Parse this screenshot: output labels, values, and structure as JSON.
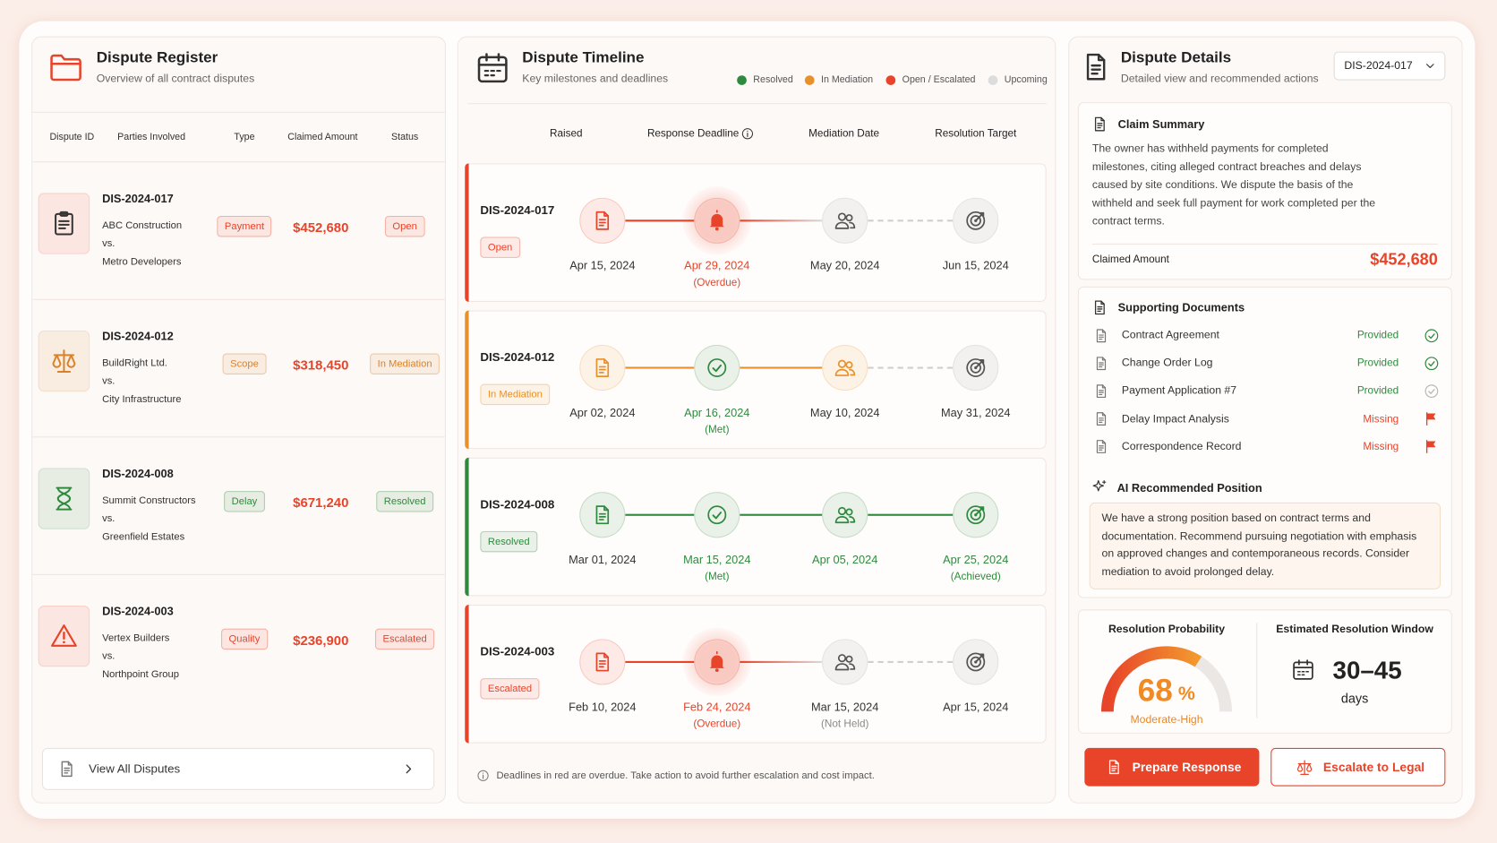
{
  "register": {
    "title": "Dispute Register",
    "subtitle": "Overview of all contract disputes",
    "columns": [
      "Dispute ID",
      "Parties Involved",
      "Type",
      "Claimed Amount",
      "Status"
    ],
    "rows": [
      {
        "id": "DIS-2024-017",
        "parties": [
          "ABC Construction",
          "vs.",
          "Metro Developers"
        ],
        "type": "Payment",
        "amount": "$452,680",
        "status": "Open",
        "color": "#e8442a"
      },
      {
        "id": "DIS-2024-012",
        "parties": [
          "BuildRight Ltd.",
          "vs.",
          "City Infrastructure"
        ],
        "type": "Scope",
        "amount": "$318,450",
        "status": "In Mediation",
        "color": "#d9822b"
      },
      {
        "id": "DIS-2024-008",
        "parties": [
          "Summit Constructors",
          "vs.",
          "Greenfield Estates"
        ],
        "type": "Delay",
        "amount": "$671,240",
        "status": "Resolved",
        "color": "#2f8a3e"
      },
      {
        "id": "DIS-2024-003",
        "parties": [
          "Vertex Builders",
          "vs.",
          "Northpoint Group"
        ],
        "type": "Quality",
        "amount": "$236,900",
        "status": "Escalated",
        "color": "#e8442a"
      }
    ],
    "view_all": "View All Disputes"
  },
  "timeline": {
    "title": "Dispute Timeline",
    "subtitle": "Key milestones and deadlines",
    "legend": [
      {
        "label": "Resolved",
        "color": "#2f8a3e"
      },
      {
        "label": "In Mediation",
        "color": "#e8912a"
      },
      {
        "label": "Open / Escalated",
        "color": "#e8442a"
      },
      {
        "label": "Upcoming",
        "color": "#dcdcdc"
      }
    ],
    "columns": [
      "Raised",
      "Response Deadline",
      "Mediation Date",
      "Resolution Target"
    ],
    "rows": [
      {
        "id": "DIS-2024-017",
        "status": "Open",
        "color": "#e8442a",
        "milestones": [
          {
            "date": "Apr 15, 2024",
            "color": "#e8442a"
          },
          {
            "date": "Apr 29, 2024",
            "note": "(Overdue)",
            "color": "#e8442a"
          },
          {
            "date": "May 20, 2024",
            "color": "#8a8a8a"
          },
          {
            "date": "Jun 15, 2024",
            "color": "#8a8a8a"
          }
        ]
      },
      {
        "id": "DIS-2024-012",
        "status": "In Mediation",
        "color": "#e8912a",
        "milestones": [
          {
            "date": "Apr 02, 2024",
            "color": "#e8912a"
          },
          {
            "date": "Apr 16, 2024",
            "note": "(Met)",
            "color": "#2f8a3e"
          },
          {
            "date": "May 10, 2024",
            "color": "#e8912a"
          },
          {
            "date": "May 31, 2024",
            "color": "#8a8a8a"
          }
        ]
      },
      {
        "id": "DIS-2024-008",
        "status": "Resolved",
        "color": "#2f8a3e",
        "milestones": [
          {
            "date": "Mar 01, 2024",
            "color": "#2f8a3e"
          },
          {
            "date": "Mar 15, 2024",
            "note": "(Met)",
            "color": "#2f8a3e"
          },
          {
            "date": "Apr 05, 2024",
            "color": "#2f8a3e"
          },
          {
            "date": "Apr 25, 2024",
            "note": "(Achieved)",
            "color": "#2f8a3e"
          }
        ]
      },
      {
        "id": "DIS-2024-003",
        "status": "Escalated",
        "color": "#e8442a",
        "milestones": [
          {
            "date": "Feb 10, 2024",
            "color": "#e8442a"
          },
          {
            "date": "Feb 24, 2024",
            "note": "(Overdue)",
            "color": "#e8442a"
          },
          {
            "date": "Mar 15, 2024",
            "note": "(Not Held)",
            "color": "#8a8a8a"
          },
          {
            "date": "Apr 15, 2024",
            "color": "#8a8a8a"
          }
        ]
      }
    ],
    "footnote": "Deadlines in red are overdue. Take action to avoid further escalation and cost impact."
  },
  "details": {
    "title": "Dispute Details",
    "subtitle": "Detailed view and recommended actions",
    "selected": "DIS-2024-017",
    "claim_title": "Claim Summary",
    "claim_text": "The owner has withheld payments for completed milestones, citing alleged contract breaches and delays caused by site conditions. We dispute the basis of the withheld and seek full payment for work completed per the contract terms.",
    "claimed_label": "Claimed Amount",
    "claimed_amount": "$452,680",
    "documents_title": "Supporting Documents",
    "documents": [
      {
        "name": "Contract Agreement",
        "status": "Provided",
        "color": "#2f8a3e",
        "icon": "check",
        "icon_color": "#2f8a3e"
      },
      {
        "name": "Change Order Log",
        "status": "Provided",
        "color": "#2f8a3e",
        "icon": "check",
        "icon_color": "#2f8a3e"
      },
      {
        "name": "Payment Application #7",
        "status": "Provided",
        "color": "#2f8a3e",
        "icon": "check",
        "icon_color": "#b8b8b8"
      },
      {
        "name": "Delay Impact Analysis",
        "status": "Missing",
        "color": "#e8442a",
        "icon": "flag",
        "icon_color": "#e8442a"
      },
      {
        "name": "Correspondence Record",
        "status": "Missing",
        "color": "#e8442a",
        "icon": "flag",
        "icon_color": "#e8442a"
      }
    ],
    "ai_title": "AI Recommended Position",
    "ai_text": "We have a strong position based on contract terms and documentation. Recommend pursuing negotiation with emphasis on approved changes and contemporaneous records. Consider mediation to avoid prolonged delay.",
    "probability_title": "Resolution Probability",
    "probability": {
      "value": 68,
      "unit": "%",
      "rating": "Moderate-High"
    },
    "window_title": "Estimated Resolution Window",
    "window": "30–45",
    "window_unit": "days",
    "prepare": "Prepare Response",
    "escalate": "Escalate to Legal"
  }
}
